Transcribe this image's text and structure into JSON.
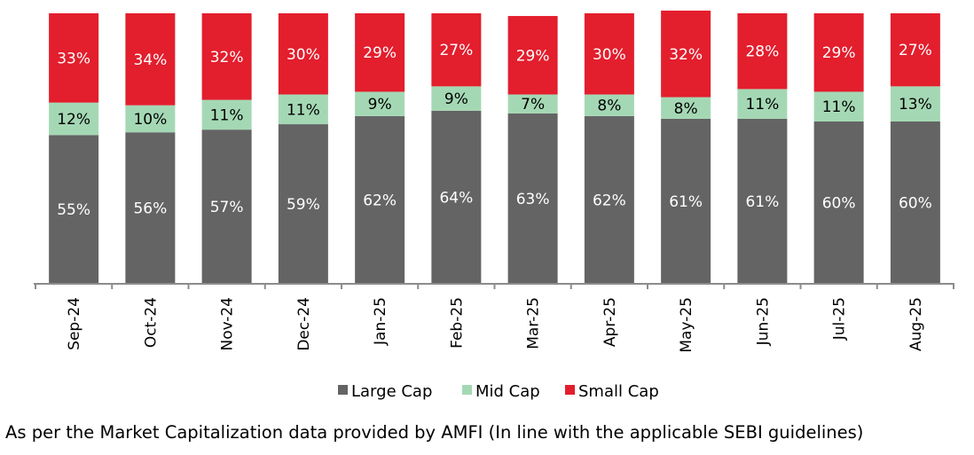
{
  "chart_data": {
    "type": "bar",
    "stacked": true,
    "percent_stacked": true,
    "categories": [
      "Sep-24",
      "Oct-24",
      "Nov-24",
      "Dec-24",
      "Jan-25",
      "Feb-25",
      "Mar-25",
      "Apr-25",
      "May-25",
      "Jun-25",
      "Jul-25",
      "Aug-25"
    ],
    "series": [
      {
        "name": "Large Cap",
        "color": "#646464",
        "values": [
          55,
          56,
          57,
          59,
          62,
          64,
          63,
          62,
          61,
          61,
          60,
          60
        ],
        "labels": [
          "55%",
          "56%",
          "57%",
          "59%",
          "62%",
          "64%",
          "63%",
          "62%",
          "61%",
          "61%",
          "60%",
          "60%"
        ]
      },
      {
        "name": "Mid Cap",
        "color": "#a4d8b4",
        "values": [
          12,
          10,
          11,
          11,
          9,
          9,
          7,
          8,
          8,
          11,
          11,
          13
        ],
        "labels": [
          "12%",
          "10%",
          "11%",
          "11%",
          "9%",
          "9%",
          "7%",
          "8%",
          "8%",
          "11%",
          "11%",
          "13%"
        ]
      },
      {
        "name": "Small Cap",
        "color": "#e31e2d",
        "values": [
          33,
          34,
          32,
          30,
          29,
          27,
          29,
          30,
          32,
          28,
          29,
          27
        ],
        "labels": [
          "33%",
          "34%",
          "32%",
          "30%",
          "29%",
          "27%",
          "29%",
          "30%",
          "32%",
          "28%",
          "29%",
          "27%"
        ]
      }
    ],
    "legend_position": "bottom",
    "grid": false
  },
  "footnote": "As per the Market Capitalization data provided by AMFI (In line with the applicable SEBI guidelines)"
}
